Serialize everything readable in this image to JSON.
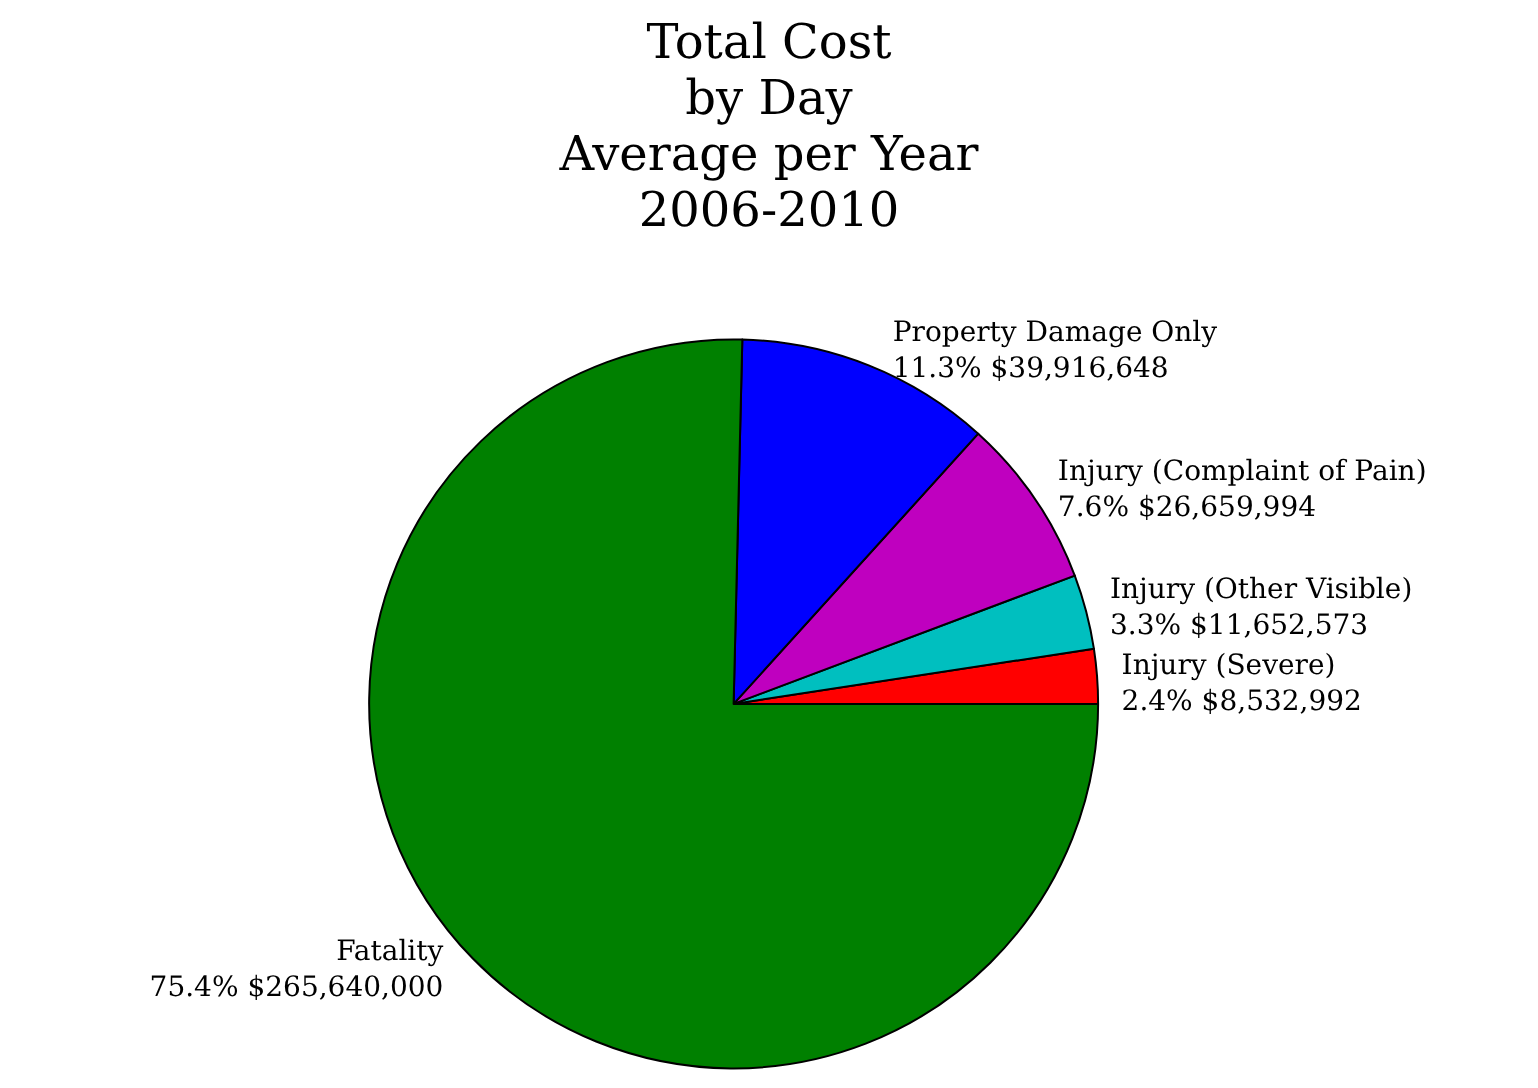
{
  "chart_data": {
    "type": "pie",
    "title": "Total Cost\nby Day\nAverage per Year\n2006-2010",
    "categories": [
      "Injury (Severe)",
      "Injury (Other Visible)",
      "Injury (Complaint of Pain)",
      "Property Damage Only",
      "Fatality"
    ],
    "values": [
      8532992,
      11652573,
      26659994,
      39916648,
      265640000
    ],
    "colors": [
      "#ff0000",
      "#00bfbf",
      "#bf00bf",
      "#0000ff",
      "#008000"
    ],
    "value_labels": [
      "2.4% $8,532,992",
      "3.3% $11,652,573",
      "7.6% $26,659,994",
      "11.3% $39,916,648",
      "75.4% $265,640,000"
    ],
    "legend": false
  }
}
